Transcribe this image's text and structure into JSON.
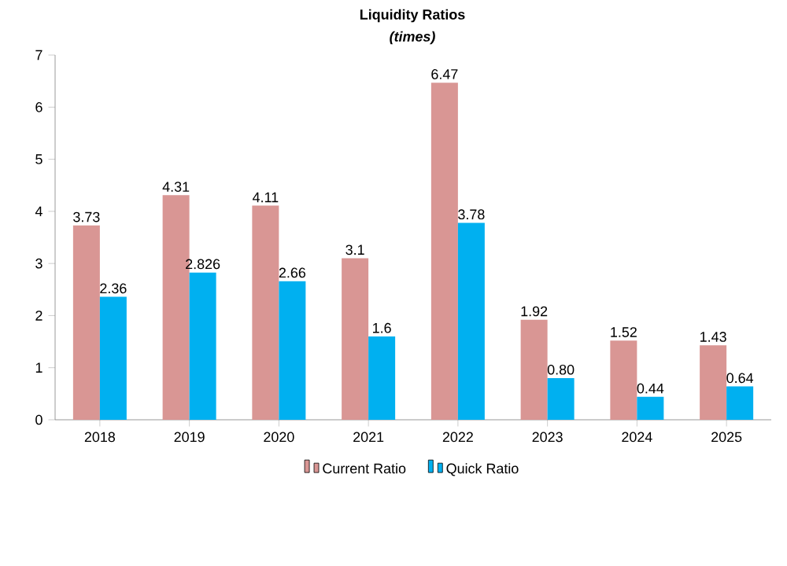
{
  "chart_data": {
    "type": "bar",
    "title": "Liquidity Ratios",
    "subtitle": "(times)",
    "categories": [
      "2018",
      "2019",
      "2020",
      "2021",
      "2022",
      "2023",
      "2024",
      "2025"
    ],
    "series": [
      {
        "name": "Current Ratio",
        "color": "#d99694",
        "values": [
          3.73,
          4.31,
          4.11,
          3.1,
          6.47,
          1.92,
          1.52,
          1.43
        ],
        "value_labels": [
          "3.73",
          "4.31",
          "4.11",
          "3.1",
          "6.47",
          "1.92",
          "1.52",
          "1.43"
        ]
      },
      {
        "name": "Quick Ratio",
        "color": "#00b0f0",
        "values": [
          2.36,
          2.826,
          2.66,
          1.6,
          3.78,
          0.8,
          0.44,
          0.64
        ],
        "value_labels": [
          "2.36",
          "2.826",
          "2.66",
          "1.6",
          "3.78",
          "0.80",
          "0.44",
          "0.64"
        ]
      }
    ],
    "ylim": [
      0,
      7
    ],
    "yticks": [
      0,
      1,
      2,
      3,
      4,
      5,
      6,
      7
    ],
    "grid": false,
    "legend": "bottom"
  }
}
